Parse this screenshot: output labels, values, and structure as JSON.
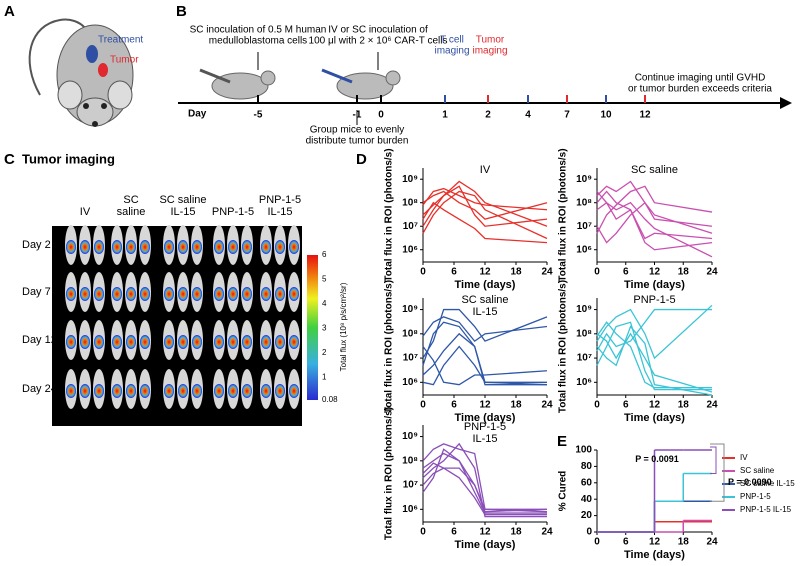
{
  "panel_a": {
    "letter": "A",
    "treatment": "Treatment",
    "tumor": "Tumor"
  },
  "panel_b": {
    "letter": "B",
    "day_label": "Day",
    "note_1": [
      "SC inoculation of 0.5 M human",
      "medulloblastoma cells"
    ],
    "note_2": [
      "IV or SC inoculation of",
      "100 μl with 2 × 10⁶ CAR-T cells"
    ],
    "t_cell": [
      "T cell",
      "imaging"
    ],
    "tumor_imaging": [
      "Tumor",
      "imaging"
    ],
    "group": [
      "Group mice to evenly",
      "distribute tumor burden"
    ],
    "continue": [
      "Continue imaging until GVHD",
      "or tumor burden exceeds criteria"
    ],
    "days": [
      -5,
      -1,
      0,
      1,
      2,
      4,
      7,
      10,
      12
    ],
    "day_colors": [
      "#000000",
      "#000000",
      "#000000",
      "#2e4fa3",
      "#e0282e",
      "#2e4fa3",
      "#e0282e",
      "#2e4fa3",
      "#e0282e"
    ]
  },
  "panel_c": {
    "letter": "C",
    "title": "Tumor imaging",
    "columns": [
      [
        "IV"
      ],
      [
        "SC",
        "saline"
      ],
      [
        "SC saline",
        "IL-15"
      ],
      [
        "PNP-1-5"
      ],
      [
        "PNP-1-5",
        "IL-15"
      ]
    ],
    "rows": [
      "Day 2",
      "Day 7",
      "Day 12",
      "Day 24"
    ],
    "colorbar": {
      "label": "Total flux (10⁸ p/s/cm²/sr)",
      "lim": [
        0.08,
        6
      ],
      "ticks": [
        6,
        5,
        4,
        3,
        2,
        1,
        0.08
      ]
    }
  },
  "panel_d": {
    "letter": "D"
  },
  "chart_data": [
    {
      "type": "line",
      "title": [
        "IV"
      ],
      "color": "#e8302a",
      "xlabel": "Time (days)",
      "ylabel": "Total flux in ROI (photons/s)",
      "log_y": true,
      "x": [
        0,
        2,
        4,
        7,
        10,
        12,
        24
      ],
      "xlim": [
        0,
        24
      ],
      "xticks": [
        0,
        6,
        12,
        18,
        24
      ],
      "ylim": [
        300000,
        3000000000
      ],
      "yticks": [
        {
          "value": 1000000,
          "label": "10⁶"
        },
        {
          "value": 10000000,
          "label": "10⁷"
        },
        {
          "value": 100000000,
          "label": "10⁸"
        },
        {
          "value": 1000000000,
          "label": "10⁹"
        }
      ],
      "series": [
        {
          "values": [
            30000000.0,
            80000000.0,
            200000000.0,
            500000000.0,
            30000000.0,
            10000000.0,
            20000000.0
          ]
        },
        {
          "values": [
            100000000.0,
            200000000.0,
            300000000.0,
            100000000.0,
            50000000.0,
            20000000.0,
            100000000.0
          ]
        },
        {
          "values": [
            5000000.0,
            30000000.0,
            100000000.0,
            300000000.0,
            200000000.0,
            50000000.0,
            3000000.0
          ]
        },
        {
          "values": [
            20000000.0,
            100000000.0,
            50000000.0,
            20000000.0,
            8000000.0,
            3000000.0,
            2000000.0
          ]
        },
        {
          "values": [
            80000000.0,
            300000000.0,
            400000000.0,
            200000000.0,
            100000000.0,
            80000000.0,
            50000000.0
          ]
        },
        {
          "values": [
            10000000.0,
            50000000.0,
            200000000.0,
            800000000.0,
            300000000.0,
            100000000.0,
            10000000.0
          ]
        }
      ]
    },
    {
      "type": "line",
      "title": [
        "SC saline"
      ],
      "color": "#c94fb0",
      "xlabel": "Time (days)",
      "ylabel": "Total flux in ROI (photons/s)",
      "log_y": true,
      "x": [
        0,
        2,
        4,
        7,
        10,
        12,
        24
      ],
      "xlim": [
        0,
        24
      ],
      "xticks": [
        0,
        6,
        12,
        18,
        24
      ],
      "ylim": [
        300000,
        3000000000
      ],
      "yticks": [
        {
          "value": 1000000,
          "label": "10⁶"
        },
        {
          "value": 10000000,
          "label": "10⁷"
        },
        {
          "value": 100000000,
          "label": "10⁸"
        },
        {
          "value": 1000000000,
          "label": "10⁹"
        }
      ],
      "series": [
        {
          "values": [
            200000000.0,
            500000000.0,
            300000000.0,
            800000000.0,
            100000000.0,
            30000000.0,
            5000000.0
          ]
        },
        {
          "values": [
            50000000.0,
            100000000.0,
            20000000.0,
            50000000.0,
            2000000.0,
            1000000.0,
            2000000.0
          ]
        },
        {
          "values": [
            100000000.0,
            300000000.0,
            100000000.0,
            50000000.0,
            3000000.0,
            5000000.0,
            3000000.0
          ]
        },
        {
          "values": [
            10000000.0,
            2000000.0,
            5000000.0,
            30000000.0,
            100000000.0,
            20000000.0,
            10000000.0
          ]
        },
        {
          "values": [
            300000000.0,
            100000000.0,
            50000000.0,
            100000000.0,
            20000000.0,
            8000000.0,
            500000.0
          ]
        },
        {
          "values": [
            5000000.0,
            30000000.0,
            80000000.0,
            300000000.0,
            500000000.0,
            100000000.0,
            40000000.0
          ]
        }
      ]
    },
    {
      "type": "line",
      "title": [
        "SC saline",
        "IL-15"
      ],
      "color": "#2e57a8",
      "xlabel": "Time (days)",
      "ylabel": "Total flux in ROI (photons/s)",
      "log_y": true,
      "x": [
        0,
        2,
        4,
        7,
        10,
        12,
        24
      ],
      "xlim": [
        0,
        24
      ],
      "xticks": [
        0,
        6,
        12,
        18,
        24
      ],
      "ylim": [
        300000,
        3000000000
      ],
      "yticks": [
        {
          "value": 1000000,
          "label": "10⁶"
        },
        {
          "value": 10000000,
          "label": "10⁷"
        },
        {
          "value": 100000000,
          "label": "10⁸"
        },
        {
          "value": 1000000000,
          "label": "10⁹"
        }
      ],
      "series": [
        {
          "values": [
            10000000.0,
            50000000.0,
            1000000000.0,
            1000000000.0,
            200000000.0,
            50000000.0,
            500000000.0
          ]
        },
        {
          "values": [
            5000000.0,
            100000000.0,
            300000000.0,
            200000000.0,
            30000000.0,
            1000000.0,
            800000.0
          ]
        },
        {
          "values": [
            30000000.0,
            8000000.0,
            1000000.0,
            800000.0,
            2000000.0,
            2000000.0,
            3000000.0
          ]
        },
        {
          "values": [
            2000000.0,
            5000000.0,
            20000000.0,
            100000000.0,
            30000000.0,
            800000.0,
            800000.0
          ]
        },
        {
          "values": [
            80000000.0,
            300000000.0,
            500000000.0,
            300000000.0,
            50000000.0,
            100000000.0,
            200000000.0
          ]
        },
        {
          "values": [
            1000000.0,
            800000.0,
            5000000.0,
            30000000.0,
            5000000.0,
            1000000.0,
            1000000.0
          ]
        }
      ]
    },
    {
      "type": "line",
      "title": [
        "PNP-1-5"
      ],
      "color": "#3bc4d6",
      "xlabel": "Time (days)",
      "ylabel": "Total flux in ROI (photons/s)",
      "log_y": true,
      "x": [
        0,
        2,
        4,
        7,
        10,
        12,
        24
      ],
      "xlim": [
        0,
        24
      ],
      "xticks": [
        0,
        6,
        12,
        18,
        24
      ],
      "ylim": [
        300000,
        3000000000
      ],
      "yticks": [
        {
          "value": 1000000,
          "label": "10⁶"
        },
        {
          "value": 10000000,
          "label": "10⁷"
        },
        {
          "value": 100000000,
          "label": "10⁸"
        },
        {
          "value": 1000000000,
          "label": "10⁹"
        }
      ],
      "series": [
        {
          "values": [
            50000000.0,
            200000000.0,
            500000000.0,
            1000000000.0,
            100000000.0,
            10000000.0,
            1500000000.0
          ]
        },
        {
          "values": [
            20000000.0,
            100000000.0,
            30000000.0,
            50000000.0,
            300000000.0,
            1000000000.0,
            1000000000.0
          ]
        },
        {
          "values": [
            100000000.0,
            50000000.0,
            10000000.0,
            100000000.0,
            10000000.0,
            2000000.0,
            400000.0
          ]
        },
        {
          "values": [
            5000000.0,
            30000000.0,
            200000000.0,
            300000000.0,
            3000000.0,
            500000.0,
            500000.0
          ]
        },
        {
          "values": [
            80000000.0,
            300000000.0,
            100000000.0,
            30000000.0,
            1000000.0,
            600000.0,
            600000.0
          ]
        },
        {
          "values": [
            30000000.0,
            10000000.0,
            5000000.0,
            200000000.0,
            40000000.0,
            800000.0,
            300000.0
          ]
        }
      ]
    },
    {
      "type": "line",
      "title": [
        "PNP-1-5",
        "IL-15"
      ],
      "color": "#8a4fb8",
      "xlabel": "Time (days)",
      "ylabel": "Total flux in ROI (photons/s)",
      "log_y": true,
      "x": [
        0,
        2,
        4,
        7,
        10,
        12,
        24
      ],
      "xlim": [
        0,
        24
      ],
      "xticks": [
        0,
        6,
        12,
        18,
        24
      ],
      "ylim": [
        300000,
        3000000000
      ],
      "yticks": [
        {
          "value": 1000000,
          "label": "10⁶"
        },
        {
          "value": 10000000,
          "label": "10⁷"
        },
        {
          "value": 100000000,
          "label": "10⁸"
        },
        {
          "value": 1000000000,
          "label": "10⁹"
        }
      ],
      "series": [
        {
          "values": [
            100000000.0,
            300000000.0,
            500000000.0,
            300000000.0,
            200000000.0,
            1000000.0,
            1000000.0
          ]
        },
        {
          "values": [
            50000000.0,
            100000000.0,
            200000000.0,
            100000000.0,
            10000000.0,
            800000.0,
            1000000.0
          ]
        },
        {
          "values": [
            20000000.0,
            50000000.0,
            100000000.0,
            500000000.0,
            50000000.0,
            500000.0,
            500000.0
          ]
        },
        {
          "values": [
            10000000.0,
            30000000.0,
            50000000.0,
            50000000.0,
            10000000.0,
            1000000.0,
            800000.0
          ]
        },
        {
          "values": [
            5000000.0,
            20000000.0,
            300000000.0,
            100000000.0,
            5000000.0,
            700000.0,
            700000.0
          ]
        },
        {
          "values": [
            30000000.0,
            80000000.0,
            50000000.0,
            20000000.0,
            3000000.0,
            600000.0,
            600000.0
          ]
        }
      ]
    },
    {
      "type": "step",
      "panel_label": "E",
      "xlabel": "Time (days)",
      "ylabel": "% Cured",
      "x": [
        0,
        12,
        18,
        24
      ],
      "xlim": [
        0,
        24
      ],
      "xticks": [
        0,
        6,
        12,
        18,
        24
      ],
      "ylim": [
        0,
        100
      ],
      "yticks": [
        0,
        20,
        40,
        60,
        80,
        100
      ],
      "series": [
        {
          "name": "IV",
          "color": "#e8302a",
          "values": [
            0,
            12.5,
            12.5,
            12.5
          ]
        },
        {
          "name": "SC saline",
          "color": "#c94fb0",
          "values": [
            0,
            0,
            14,
            14
          ]
        },
        {
          "name": "SC saline IL-15",
          "color": "#2e57a8",
          "values": [
            0,
            37.5,
            37.5,
            37.5
          ]
        },
        {
          "name": "PNP-1-5",
          "color": "#3bc4d6",
          "values": [
            0,
            37.5,
            71.4,
            71.4
          ]
        },
        {
          "name": "PNP-1-5 IL-15",
          "color": "#8a4fb8",
          "values": [
            0,
            100,
            100,
            100
          ]
        }
      ],
      "annotations": [
        "P = 0.0091",
        "P = 0.0090"
      ]
    }
  ]
}
